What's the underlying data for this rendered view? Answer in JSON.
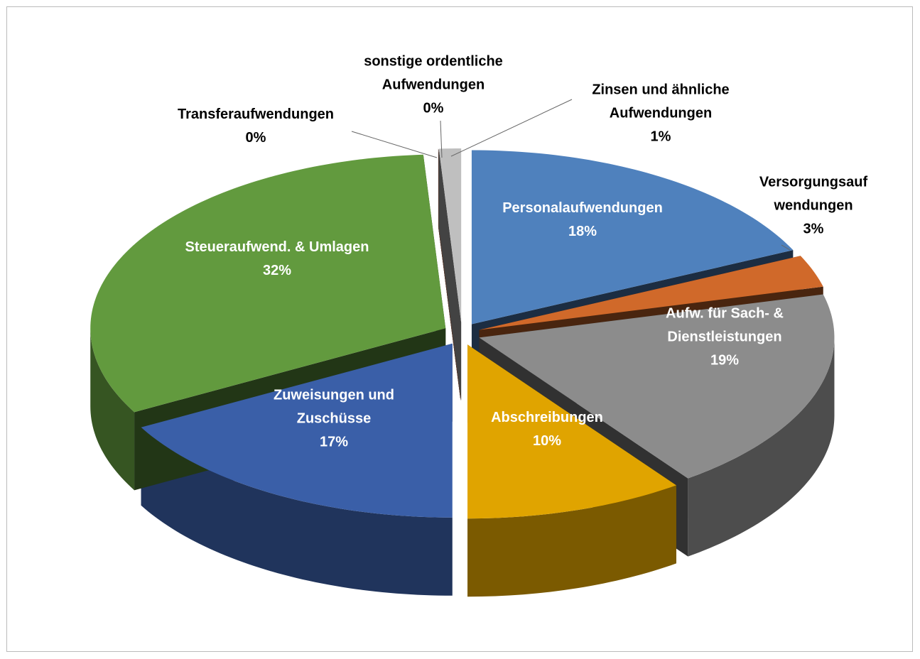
{
  "chart_data": {
    "type": "pie",
    "categories": [
      "Personalaufwendungen",
      "Versorgungsauf\nwendungen",
      "Aufw. für Sach- &\nDienstleistungen",
      "Abschreibungen",
      "Zuweisungen und\nZuschüsse",
      "Steueraufwend. & Umlagen",
      "Transferaufwendungen",
      "sonstige ordentliche\nAufwendungen",
      "Zinsen und ähnliche\nAufwendungen"
    ],
    "values": [
      18,
      3,
      19,
      10,
      17,
      32,
      0,
      0,
      1
    ],
    "value_labels": [
      "18%",
      "3%",
      "19%",
      "10%",
      "17%",
      "32%",
      "0%",
      "0%",
      "1%"
    ],
    "colors": [
      "#4f81bd",
      "#d0692a",
      "#8c8c8c",
      "#e0a400",
      "#3a5fa8",
      "#629a3e",
      "#c0504d",
      "#f4a582",
      "#bfbfbf"
    ]
  }
}
